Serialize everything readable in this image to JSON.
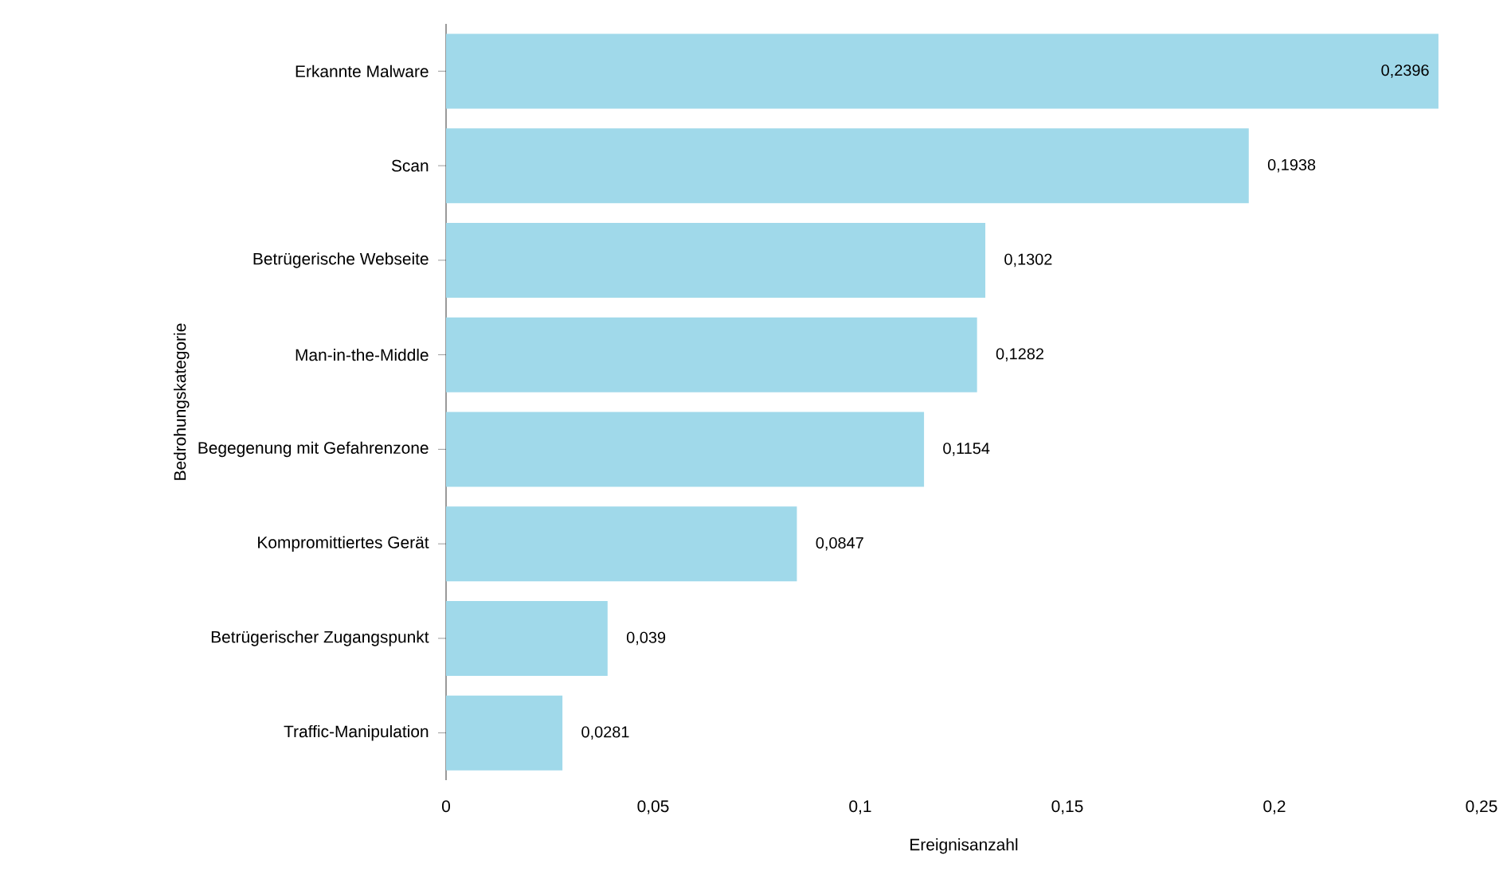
{
  "chart_data": {
    "type": "bar",
    "orientation": "horizontal",
    "xlabel": "Ereignisanzahl",
    "ylabel": "Bedrohungskategorie",
    "categories": [
      "Erkannte Malware",
      "Scan",
      "Betrügerische Webseite",
      "Man-in-the-Middle",
      "Begegenung mit Gefahrenzone",
      "Kompromittiertes Gerät",
      "Betrügerischer Zugangspunkt",
      "Traffic-Manipulation"
    ],
    "values": [
      0.2396,
      0.1938,
      0.1302,
      0.1282,
      0.1154,
      0.0847,
      0.039,
      0.0281
    ],
    "value_labels": [
      "0,2396",
      "0,1938",
      "0,1302",
      "0,1282",
      "0,1154",
      "0,0847",
      "0,039",
      "0,0281"
    ],
    "color": "#a0d9ea",
    "xlim": [
      0,
      0.25
    ],
    "xticks": [
      0,
      {
        "value": 0.05,
        "label": "0,05"
      },
      {
        "value": 0.1,
        "label": "0,1"
      },
      {
        "value": 0.15,
        "label": "0,15"
      },
      {
        "value": 0.2,
        "label": "0,2"
      },
      {
        "value": 0.25,
        "label": "0,25"
      }
    ],
    "grid": false
  }
}
